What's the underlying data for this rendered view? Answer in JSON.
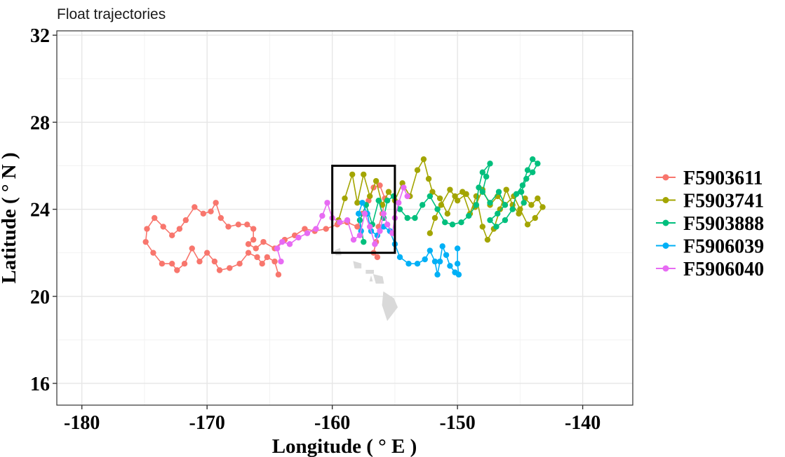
{
  "chart_data": {
    "type": "line",
    "title": "Float trajectories",
    "xlabel": "Longitude ( ° E )",
    "ylabel": "Latitude ( ° N )",
    "xlim": [
      -182,
      -136
    ],
    "ylim": [
      15,
      32.2
    ],
    "x_ticks": [
      -180,
      -170,
      -160,
      -150,
      -140
    ],
    "y_ticks": [
      16,
      20,
      24,
      28,
      32
    ],
    "x_tick_labels": [
      "-180",
      "-170",
      "-160",
      "-150",
      "-140"
    ],
    "y_tick_labels": [
      "16",
      "20",
      "24",
      "28",
      "32"
    ],
    "grid": true,
    "legend_position": "right",
    "highlight_box": {
      "x": [
        -160,
        -155
      ],
      "y": [
        22,
        26
      ]
    },
    "land_color": "#d9d9d9",
    "series": [
      {
        "name": "F5903611",
        "color": "#F8766D",
        "points": [
          [
            -164.3,
            21.0
          ],
          [
            -164.6,
            21.6
          ],
          [
            -165.2,
            21.8
          ],
          [
            -165.6,
            21.5
          ],
          [
            -166.0,
            21.8
          ],
          [
            -166.7,
            22.0
          ],
          [
            -167.4,
            21.5
          ],
          [
            -168.2,
            21.3
          ],
          [
            -169.0,
            21.2
          ],
          [
            -169.4,
            21.6
          ],
          [
            -170.0,
            22.0
          ],
          [
            -170.6,
            21.6
          ],
          [
            -171.2,
            22.2
          ],
          [
            -171.8,
            21.5
          ],
          [
            -172.4,
            21.2
          ],
          [
            -172.8,
            21.5
          ],
          [
            -173.6,
            21.5
          ],
          [
            -174.3,
            22.0
          ],
          [
            -174.9,
            22.5
          ],
          [
            -174.8,
            23.1
          ],
          [
            -174.2,
            23.6
          ],
          [
            -173.5,
            23.2
          ],
          [
            -172.8,
            22.8
          ],
          [
            -172.2,
            23.1
          ],
          [
            -171.7,
            23.5
          ],
          [
            -171.0,
            24.1
          ],
          [
            -170.3,
            23.8
          ],
          [
            -169.7,
            23.9
          ],
          [
            -169.3,
            24.3
          ],
          [
            -168.9,
            23.6
          ],
          [
            -168.3,
            23.2
          ],
          [
            -167.5,
            23.3
          ],
          [
            -166.8,
            23.3
          ],
          [
            -166.3,
            23.1
          ],
          [
            -166.3,
            22.6
          ],
          [
            -166.7,
            22.4
          ],
          [
            -166.1,
            22.2
          ],
          [
            -165.5,
            22.5
          ],
          [
            -164.6,
            22.2
          ],
          [
            -163.8,
            22.6
          ],
          [
            -163.0,
            22.8
          ],
          [
            -162.2,
            23.1
          ],
          [
            -161.4,
            23.0
          ],
          [
            -160.5,
            23.1
          ],
          [
            -159.6,
            23.3
          ],
          [
            -158.8,
            23.4
          ],
          [
            -158.0,
            23.2
          ],
          [
            -157.6,
            23.8
          ],
          [
            -157.1,
            24.4
          ],
          [
            -156.7,
            25.0
          ],
          [
            -156.2,
            25.1
          ],
          [
            -155.8,
            24.5
          ],
          [
            -156.0,
            23.8
          ],
          [
            -156.3,
            23.2
          ],
          [
            -156.5,
            22.5
          ],
          [
            -156.7,
            22.0
          ],
          [
            -156.4,
            21.8
          ]
        ]
      },
      {
        "name": "F5903741",
        "color": "#A3A500",
        "points": [
          [
            -159.5,
            23.5
          ],
          [
            -159.0,
            24.5
          ],
          [
            -158.4,
            25.6
          ],
          [
            -158.0,
            24.3
          ],
          [
            -157.5,
            25.6
          ],
          [
            -157.0,
            24.6
          ],
          [
            -156.5,
            25.3
          ],
          [
            -156.0,
            24.2
          ],
          [
            -155.5,
            24.8
          ],
          [
            -155.0,
            24.4
          ],
          [
            -154.4,
            25.2
          ],
          [
            -153.8,
            24.6
          ],
          [
            -153.2,
            25.8
          ],
          [
            -152.7,
            26.3
          ],
          [
            -152.3,
            25.4
          ],
          [
            -152.0,
            24.8
          ],
          [
            -151.4,
            24.5
          ],
          [
            -150.8,
            23.8
          ],
          [
            -150.2,
            24.6
          ],
          [
            -149.6,
            24.8
          ],
          [
            -149.0,
            23.8
          ],
          [
            -148.5,
            24.6
          ],
          [
            -148.0,
            23.2
          ],
          [
            -147.6,
            22.6
          ],
          [
            -147.1,
            23.1
          ],
          [
            -146.6,
            24.0
          ],
          [
            -146.1,
            24.9
          ],
          [
            -145.6,
            24.2
          ],
          [
            -145.1,
            23.8
          ],
          [
            -144.6,
            24.5
          ],
          [
            -144.1,
            24.2
          ],
          [
            -143.6,
            24.5
          ],
          [
            -143.2,
            24.1
          ],
          [
            -143.8,
            23.6
          ],
          [
            -144.4,
            23.3
          ],
          [
            -145.0,
            24.0
          ],
          [
            -145.5,
            24.6
          ],
          [
            -146.2,
            24.2
          ],
          [
            -146.8,
            24.6
          ],
          [
            -147.4,
            24.2
          ],
          [
            -148.0,
            24.9
          ],
          [
            -148.6,
            24.1
          ],
          [
            -149.3,
            24.7
          ],
          [
            -150.0,
            24.4
          ],
          [
            -150.6,
            24.9
          ],
          [
            -151.3,
            24.2
          ],
          [
            -151.8,
            23.6
          ],
          [
            -152.2,
            22.9
          ]
        ]
      },
      {
        "name": "F5903888",
        "color": "#00BF7D",
        "points": [
          [
            -157.5,
            22.5
          ],
          [
            -157.8,
            23.5
          ],
          [
            -157.3,
            24.2
          ],
          [
            -156.8,
            23.3
          ],
          [
            -156.3,
            24.4
          ],
          [
            -155.9,
            23.6
          ],
          [
            -155.6,
            24.4
          ],
          [
            -155.1,
            24.6
          ],
          [
            -154.6,
            24.0
          ],
          [
            -154.0,
            23.6
          ],
          [
            -153.4,
            23.6
          ],
          [
            -152.8,
            24.2
          ],
          [
            -152.2,
            24.6
          ],
          [
            -151.6,
            24.0
          ],
          [
            -151.0,
            23.4
          ],
          [
            -150.4,
            23.3
          ],
          [
            -149.7,
            23.4
          ],
          [
            -149.1,
            23.7
          ],
          [
            -148.5,
            24.2
          ],
          [
            -148.3,
            25.0
          ],
          [
            -148.0,
            25.7
          ],
          [
            -147.4,
            26.1
          ],
          [
            -147.7,
            25.5
          ],
          [
            -148.0,
            24.8
          ],
          [
            -147.4,
            24.3
          ],
          [
            -146.7,
            24.8
          ],
          [
            -146.2,
            24.2
          ],
          [
            -146.8,
            23.8
          ],
          [
            -147.4,
            23.5
          ],
          [
            -146.9,
            23.2
          ],
          [
            -146.2,
            23.5
          ],
          [
            -145.6,
            24.0
          ],
          [
            -145.3,
            24.7
          ],
          [
            -144.8,
            25.1
          ],
          [
            -144.4,
            25.8
          ],
          [
            -144.0,
            26.3
          ],
          [
            -143.6,
            26.1
          ],
          [
            -144.0,
            25.7
          ],
          [
            -144.5,
            25.4
          ],
          [
            -144.9,
            24.8
          ],
          [
            -144.7,
            24.3
          ]
        ]
      },
      {
        "name": "F5906039",
        "color": "#00B0F6",
        "points": [
          [
            -157.7,
            23.0
          ],
          [
            -157.9,
            23.8
          ],
          [
            -157.6,
            24.3
          ],
          [
            -157.2,
            23.8
          ],
          [
            -156.9,
            23.0
          ],
          [
            -156.4,
            22.8
          ],
          [
            -155.9,
            23.2
          ],
          [
            -155.4,
            23.0
          ],
          [
            -155.0,
            22.4
          ],
          [
            -154.6,
            21.8
          ],
          [
            -153.9,
            21.5
          ],
          [
            -153.2,
            21.5
          ],
          [
            -152.6,
            21.7
          ],
          [
            -152.2,
            22.1
          ],
          [
            -151.8,
            21.6
          ],
          [
            -151.6,
            21.0
          ],
          [
            -151.4,
            21.6
          ],
          [
            -151.2,
            22.3
          ],
          [
            -150.9,
            21.9
          ],
          [
            -150.6,
            21.4
          ],
          [
            -150.2,
            21.1
          ],
          [
            -149.9,
            21.0
          ],
          [
            -150.0,
            21.5
          ],
          [
            -150.0,
            22.2
          ]
        ]
      },
      {
        "name": "F5906040",
        "color": "#E76BF3",
        "points": [
          [
            -164.1,
            21.6
          ],
          [
            -164.4,
            22.2
          ],
          [
            -164.0,
            22.5
          ],
          [
            -163.4,
            22.4
          ],
          [
            -162.7,
            22.7
          ],
          [
            -162.0,
            22.9
          ],
          [
            -161.3,
            23.1
          ],
          [
            -160.8,
            23.7
          ],
          [
            -160.4,
            24.3
          ],
          [
            -160.0,
            23.6
          ],
          [
            -159.4,
            23.4
          ],
          [
            -158.8,
            23.5
          ],
          [
            -158.3,
            22.6
          ],
          [
            -157.8,
            22.8
          ],
          [
            -157.4,
            23.8
          ],
          [
            -157.0,
            23.2
          ],
          [
            -156.6,
            22.4
          ],
          [
            -156.2,
            23.0
          ],
          [
            -155.9,
            23.8
          ],
          [
            -155.6,
            23.3
          ],
          [
            -155.2,
            22.9
          ],
          [
            -155.0,
            23.6
          ],
          [
            -154.7,
            24.3
          ],
          [
            -154.3,
            25.0
          ],
          [
            -154.0,
            24.6
          ]
        ]
      }
    ]
  }
}
